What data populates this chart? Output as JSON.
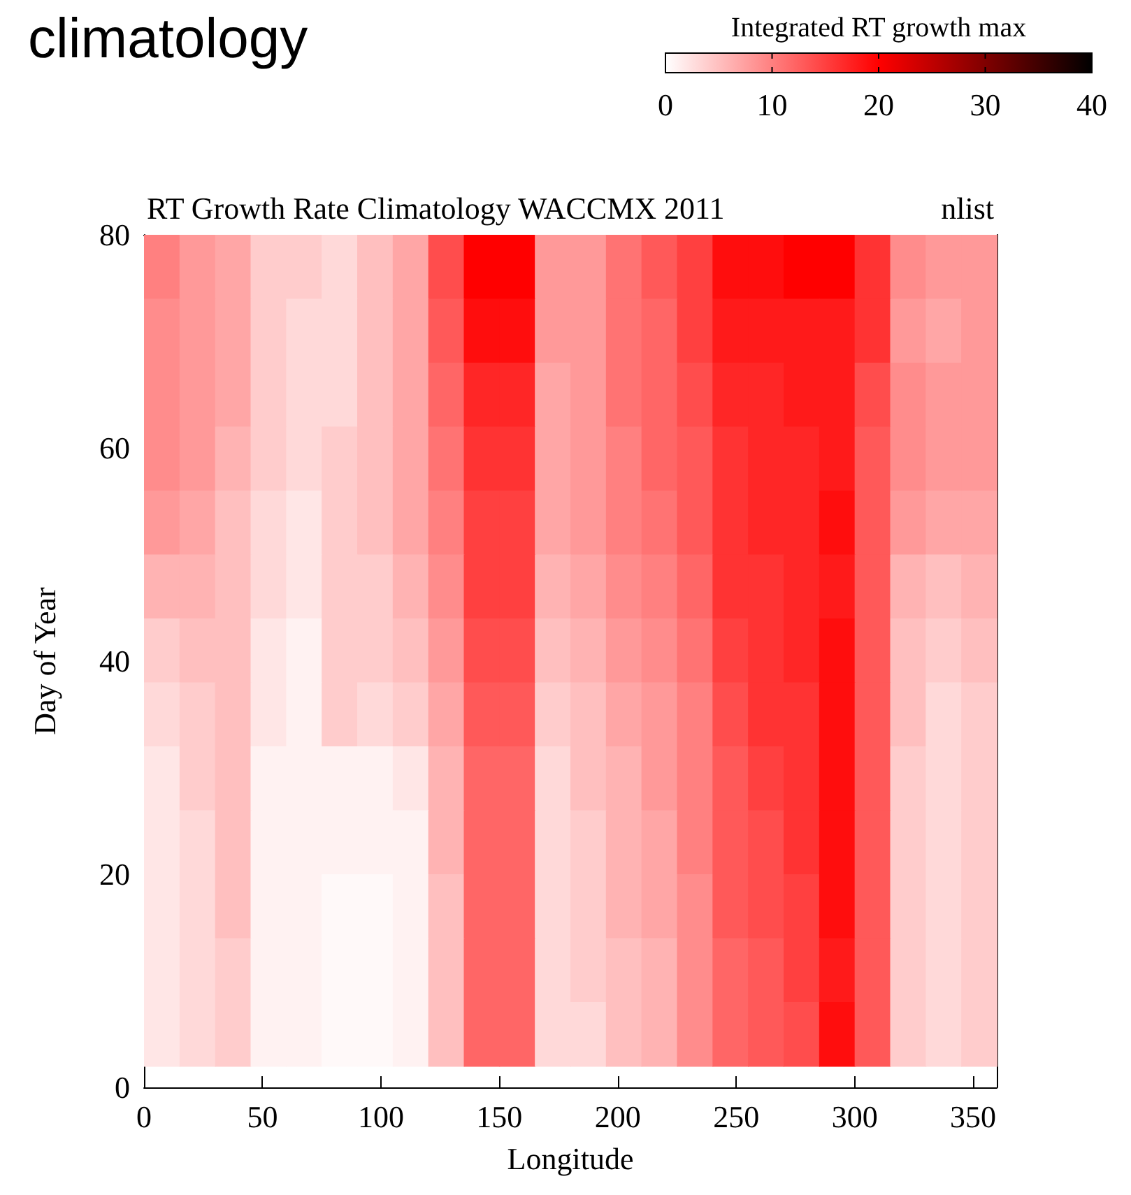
{
  "chart_data": {
    "type": "heatmap",
    "title": "RT Growth Rate Climatology WACCMX 2011",
    "subtitle": "climatology",
    "annotations": [
      "nlist"
    ],
    "xlabel": "Longitude",
    "ylabel": "Day of Year",
    "clabel": "Integrated RT growth max",
    "x": [
      7.5,
      22.5,
      37.5,
      52.5,
      67.5,
      82.5,
      97.5,
      112.5,
      127.5,
      142.5,
      157.5,
      172.5,
      187.5,
      202.5,
      217.5,
      232.5,
      247.5,
      262.5,
      277.5,
      292.5,
      307.5,
      322.5,
      337.5,
      352.5
    ],
    "y": [
      77,
      71,
      65,
      59,
      53,
      47,
      41,
      35,
      29,
      23,
      17,
      11,
      5
    ],
    "cells": [
      [
        10,
        8,
        7,
        4,
        4,
        3,
        5,
        7,
        14,
        20,
        20,
        8,
        8,
        11,
        13,
        15,
        19,
        19,
        20,
        20,
        16,
        9,
        8,
        8
      ],
      [
        9,
        8,
        7,
        4,
        3,
        3,
        5,
        7,
        13,
        19,
        19,
        8,
        8,
        11,
        12,
        15,
        18,
        18,
        18,
        18,
        16,
        8,
        7,
        8
      ],
      [
        9,
        8,
        7,
        4,
        3,
        3,
        5,
        7,
        12,
        17,
        17,
        7,
        8,
        11,
        12,
        14,
        17,
        17,
        18,
        18,
        14,
        9,
        8,
        8
      ],
      [
        9,
        8,
        6,
        4,
        3,
        4,
        5,
        7,
        11,
        16,
        16,
        7,
        8,
        10,
        12,
        13,
        16,
        17,
        17,
        18,
        13,
        9,
        8,
        8
      ],
      [
        8,
        7,
        5,
        3,
        2,
        4,
        5,
        7,
        10,
        15,
        15,
        7,
        8,
        10,
        11,
        13,
        16,
        17,
        17,
        19,
        13,
        8,
        7,
        7
      ],
      [
        6,
        6,
        5,
        3,
        2,
        4,
        4,
        6,
        9,
        15,
        15,
        6,
        7,
        9,
        10,
        12,
        16,
        16,
        17,
        18,
        13,
        6,
        5,
        6
      ],
      [
        4,
        5,
        5,
        2,
        1,
        4,
        4,
        5,
        8,
        14,
        14,
        5,
        6,
        8,
        9,
        11,
        15,
        16,
        17,
        19,
        13,
        5,
        4,
        5
      ],
      [
        3,
        4,
        5,
        2,
        1,
        4,
        3,
        4,
        7,
        13,
        13,
        4,
        5,
        7,
        8,
        10,
        14,
        16,
        16,
        19,
        13,
        5,
        3,
        4
      ],
      [
        2,
        4,
        5,
        1,
        1,
        1,
        1,
        2,
        6,
        12,
        12,
        3,
        5,
        6,
        8,
        10,
        13,
        15,
        16,
        19,
        13,
        4,
        3,
        4
      ],
      [
        2,
        3,
        5,
        1,
        1,
        1,
        1,
        1,
        6,
        12,
        12,
        3,
        4,
        6,
        7,
        10,
        13,
        14,
        16,
        19,
        13,
        4,
        3,
        4
      ],
      [
        2,
        3,
        5,
        1,
        1,
        0.5,
        0.5,
        1,
        5,
        12,
        12,
        3,
        4,
        6,
        7,
        9,
        13,
        14,
        15,
        19,
        13,
        4,
        3,
        4
      ],
      [
        2,
        3,
        4,
        1,
        1,
        0.5,
        0.5,
        1,
        5,
        12,
        12,
        3,
        4,
        5,
        6,
        9,
        12,
        13,
        15,
        18,
        13,
        4,
        3,
        4
      ],
      [
        2,
        3,
        4,
        1,
        1,
        0.5,
        0.5,
        1,
        5,
        12,
        12,
        3,
        3,
        5,
        6,
        9,
        12,
        13,
        14,
        19,
        13,
        4,
        3,
        4
      ]
    ],
    "xlim": [
      0,
      360
    ],
    "xticks": [
      0,
      50,
      100,
      150,
      200,
      250,
      300,
      350
    ],
    "ylim": [
      0,
      80
    ],
    "yticks": [
      0,
      20,
      40,
      60,
      80
    ],
    "clim": [
      0,
      40
    ],
    "cticks": [
      0,
      10,
      20,
      30,
      40
    ]
  }
}
